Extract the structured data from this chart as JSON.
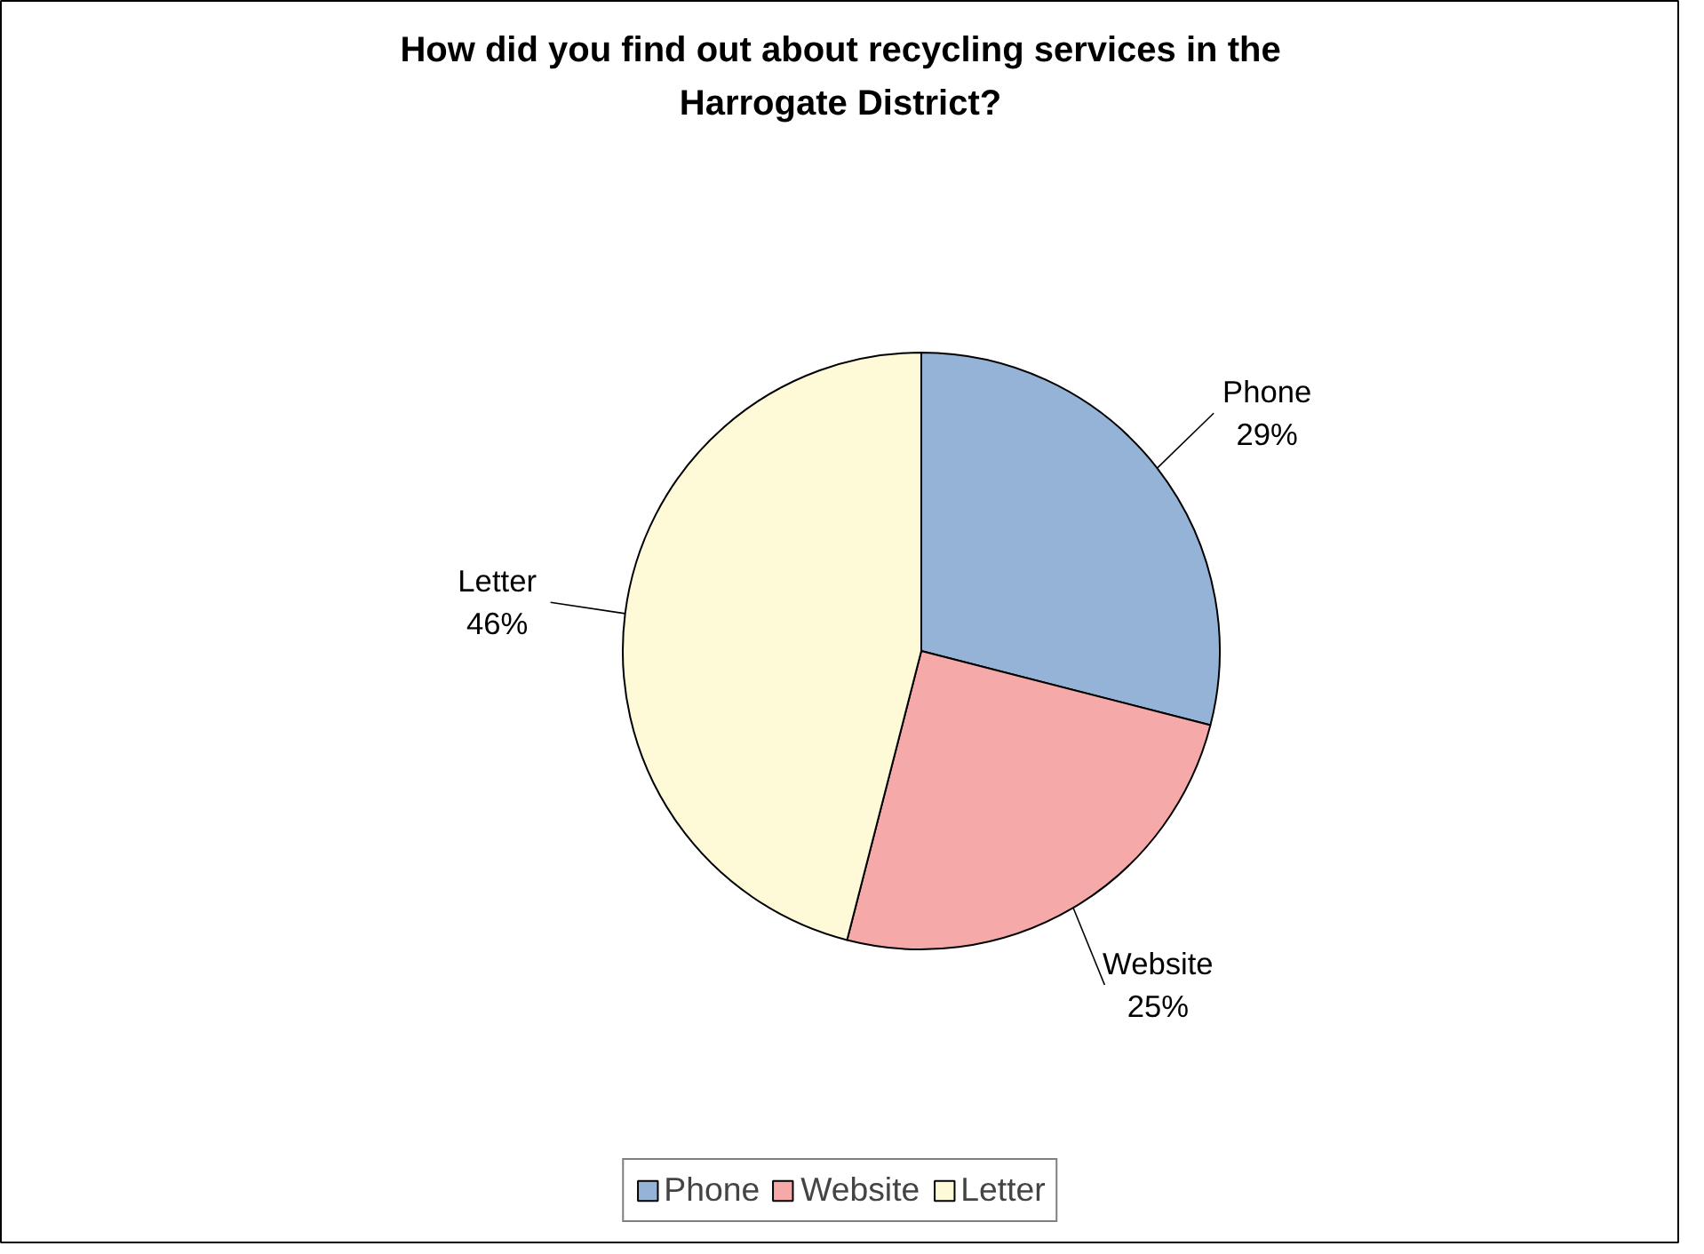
{
  "chart_data": {
    "type": "pie",
    "title": "How did you find out about recycling services in the Harrogate District?",
    "categories": [
      "Phone",
      "Website",
      "Letter"
    ],
    "values": [
      29,
      25,
      46
    ],
    "colors": [
      "#95b3d7",
      "#f5aaa9",
      "#fefad8"
    ],
    "value_labels": [
      "29%",
      "25%",
      "46%"
    ],
    "legend": "bottom"
  }
}
